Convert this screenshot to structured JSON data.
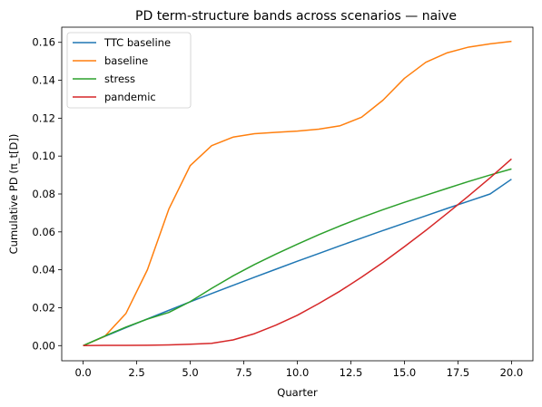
{
  "chart_data": {
    "type": "line",
    "title": "PD term-structure bands across scenarios — naive",
    "xlabel": "Quarter",
    "ylabel": "Cumulative PD (π_t[D])",
    "xlim": [
      -1.0,
      21.0
    ],
    "ylim": [
      -0.008,
      0.168
    ],
    "xticks": [
      0.0,
      2.5,
      5.0,
      7.5,
      10.0,
      12.5,
      15.0,
      17.5,
      20.0
    ],
    "xtick_labels": [
      "0.0",
      "2.5",
      "5.0",
      "7.5",
      "10.0",
      "12.5",
      "15.0",
      "17.5",
      "20.0"
    ],
    "yticks": [
      0.0,
      0.02,
      0.04,
      0.06,
      0.08,
      0.1,
      0.12,
      0.14,
      0.16
    ],
    "ytick_labels": [
      "0.00",
      "0.02",
      "0.04",
      "0.06",
      "0.08",
      "0.10",
      "0.12",
      "0.14",
      "0.16"
    ],
    "grid": false,
    "legend_position": "top-left",
    "x": [
      0,
      1,
      2,
      3,
      4,
      5,
      6,
      7,
      8,
      9,
      10,
      11,
      12,
      13,
      14,
      15,
      16,
      17,
      18,
      19,
      20
    ],
    "series": [
      {
        "name": "TTC baseline",
        "color": "#1f77b4",
        "values": [
          0.0,
          0.0048,
          0.0095,
          0.0141,
          0.0186,
          0.0231,
          0.0275,
          0.0318,
          0.0361,
          0.0403,
          0.0445,
          0.0486,
          0.0527,
          0.0567,
          0.0607,
          0.0646,
          0.0685,
          0.0724,
          0.0762,
          0.08,
          0.0878
        ]
      },
      {
        "name": "baseline",
        "color": "#ff7f0e",
        "values": [
          0.0,
          0.0048,
          0.017,
          0.04,
          0.072,
          0.095,
          0.1055,
          0.11,
          0.1118,
          0.1125,
          0.1132,
          0.1142,
          0.116,
          0.1205,
          0.1295,
          0.141,
          0.1495,
          0.1545,
          0.1575,
          0.1592,
          0.1605
        ]
      },
      {
        "name": "stress",
        "color": "#2ca02c",
        "values": [
          0.0,
          0.005,
          0.0098,
          0.014,
          0.0175,
          0.0232,
          0.0302,
          0.0368,
          0.0428,
          0.0483,
          0.0535,
          0.0585,
          0.0632,
          0.0676,
          0.0717,
          0.0756,
          0.0793,
          0.083,
          0.0866,
          0.09,
          0.0932
        ]
      },
      {
        "name": "pandemic",
        "color": "#d62728",
        "values": [
          0.0,
          0.0001,
          0.0001,
          0.0002,
          0.0004,
          0.0007,
          0.0012,
          0.003,
          0.0063,
          0.0108,
          0.016,
          0.0222,
          0.0288,
          0.0361,
          0.0439,
          0.0522,
          0.0608,
          0.0698,
          0.079,
          0.0885,
          0.0985
        ]
      }
    ]
  }
}
